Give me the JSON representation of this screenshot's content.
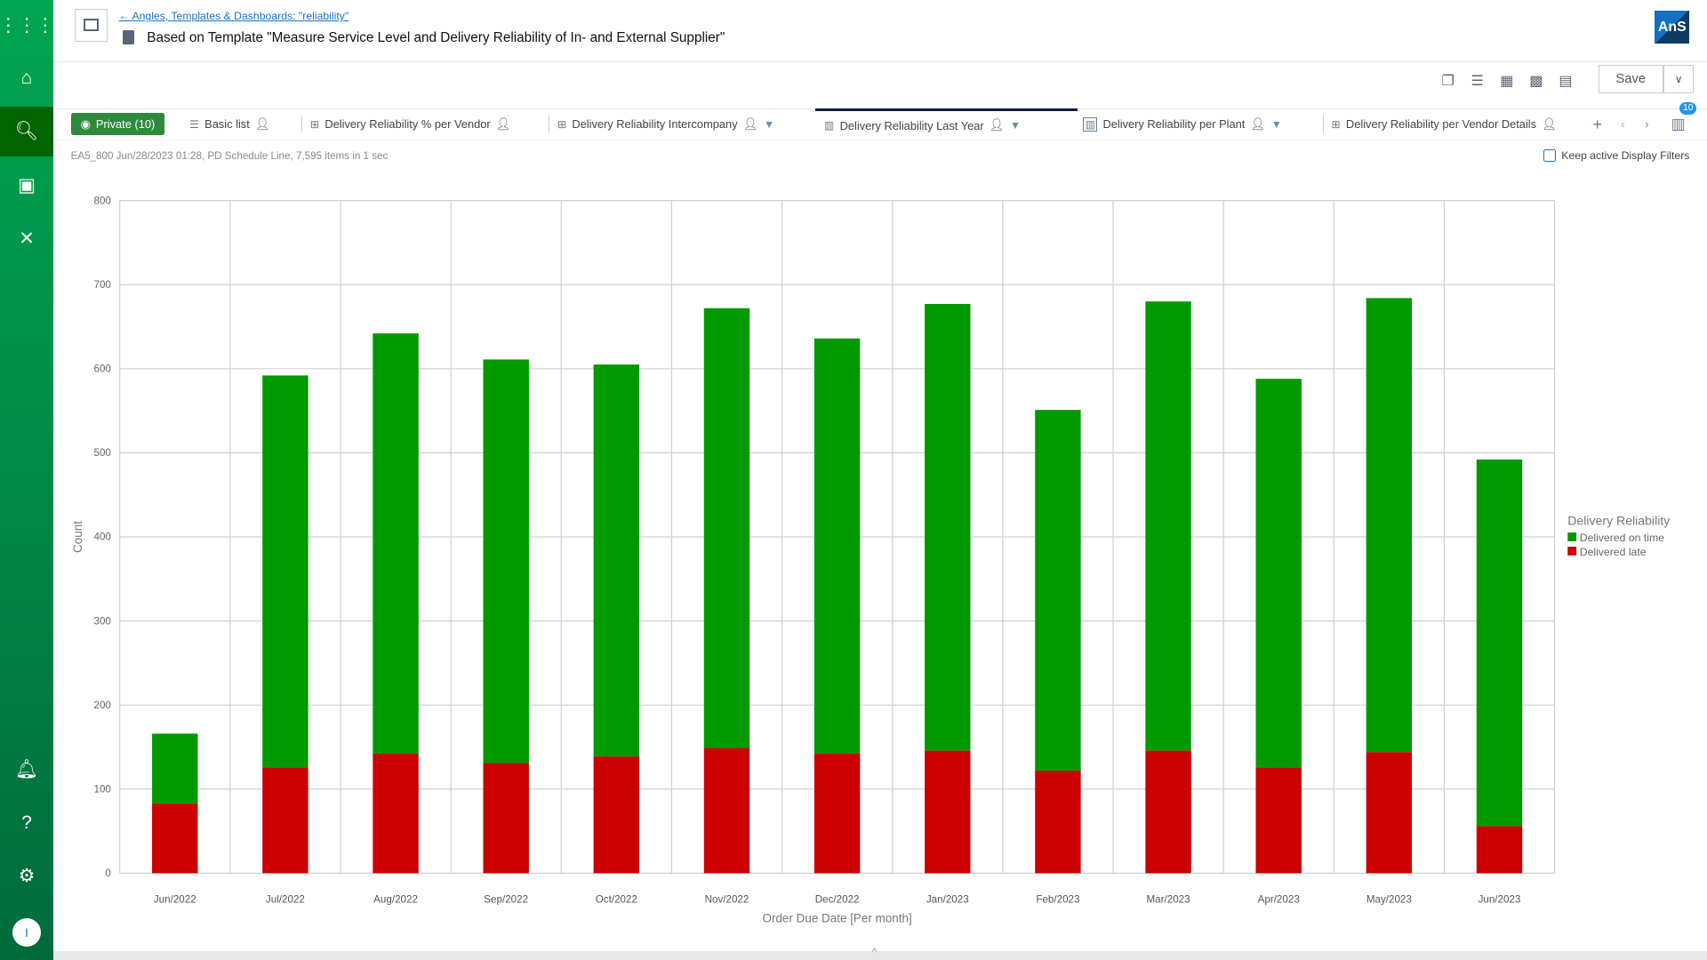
{
  "sidebar": {
    "items": [
      "apps-grid",
      "home",
      "search",
      "terminal",
      "tools",
      "notifications",
      "help",
      "settings"
    ],
    "avatar": "I"
  },
  "header": {
    "breadcrumb": "Angles, Templates & Dashboards: \"reliability\"",
    "title": "Based on Template \"Measure Service Level and Delivery Reliability of In- and External Supplier\"",
    "logo": "AnS"
  },
  "toolbar": {
    "save_label": "Save",
    "icons": [
      "copy-icon",
      "add-list-icon",
      "add-column-icon",
      "excel-icon",
      "csv-icon"
    ]
  },
  "tabs": {
    "private_label": "Private (10)",
    "items": [
      {
        "label": "Basic list",
        "icon": "list-icon",
        "filter": false,
        "active": false
      },
      {
        "label": "Delivery Reliability % per Vendor",
        "icon": "pivot-icon",
        "filter": false,
        "active": false
      },
      {
        "label": "Delivery Reliability Intercompany",
        "icon": "pivot-icon",
        "filter": true,
        "active": false
      },
      {
        "label": "Delivery Reliability Last Year",
        "icon": "chart-icon",
        "filter": true,
        "active": true
      },
      {
        "label": "Delivery Reliability per Plant",
        "icon": "chart-icon",
        "filter": true,
        "active": false
      },
      {
        "label": "Delivery Reliability per Vendor Details",
        "icon": "pivot-icon",
        "filter": false,
        "active": false
      }
    ],
    "count_badge": "10"
  },
  "info": "EA5_800 Jun/28/2023 01:28, PD Schedule Line, 7,595 items in 1 sec",
  "keep_filters_label": "Keep active Display Filters",
  "chart_data": {
    "type": "bar",
    "stacked": true,
    "xlabel": "Order Due Date  [Per month]",
    "ylabel": "Count",
    "ylim": [
      0,
      800
    ],
    "yticks": [
      0,
      100,
      200,
      300,
      400,
      500,
      600,
      700,
      800
    ],
    "grid": true,
    "legend_title": "Delivery Reliability",
    "legend_placement": "right",
    "categories": [
      "Jun/2022",
      "Jul/2022",
      "Aug/2022",
      "Sep/2022",
      "Oct/2022",
      "Nov/2022",
      "Dec/2022",
      "Jan/2023",
      "Feb/2023",
      "Mar/2023",
      "Apr/2023",
      "May/2023",
      "Jun/2023"
    ],
    "series": [
      {
        "name": "Delivered on time",
        "color": "#009900",
        "values": [
          83,
          466,
          500,
          480,
          466,
          523,
          494,
          531,
          429,
          534,
          462,
          540,
          436
        ]
      },
      {
        "name": "Delivered late",
        "color": "#cc0000",
        "values": [
          83,
          126,
          142,
          131,
          139,
          149,
          142,
          146,
          122,
          146,
          126,
          144,
          56
        ]
      }
    ]
  }
}
